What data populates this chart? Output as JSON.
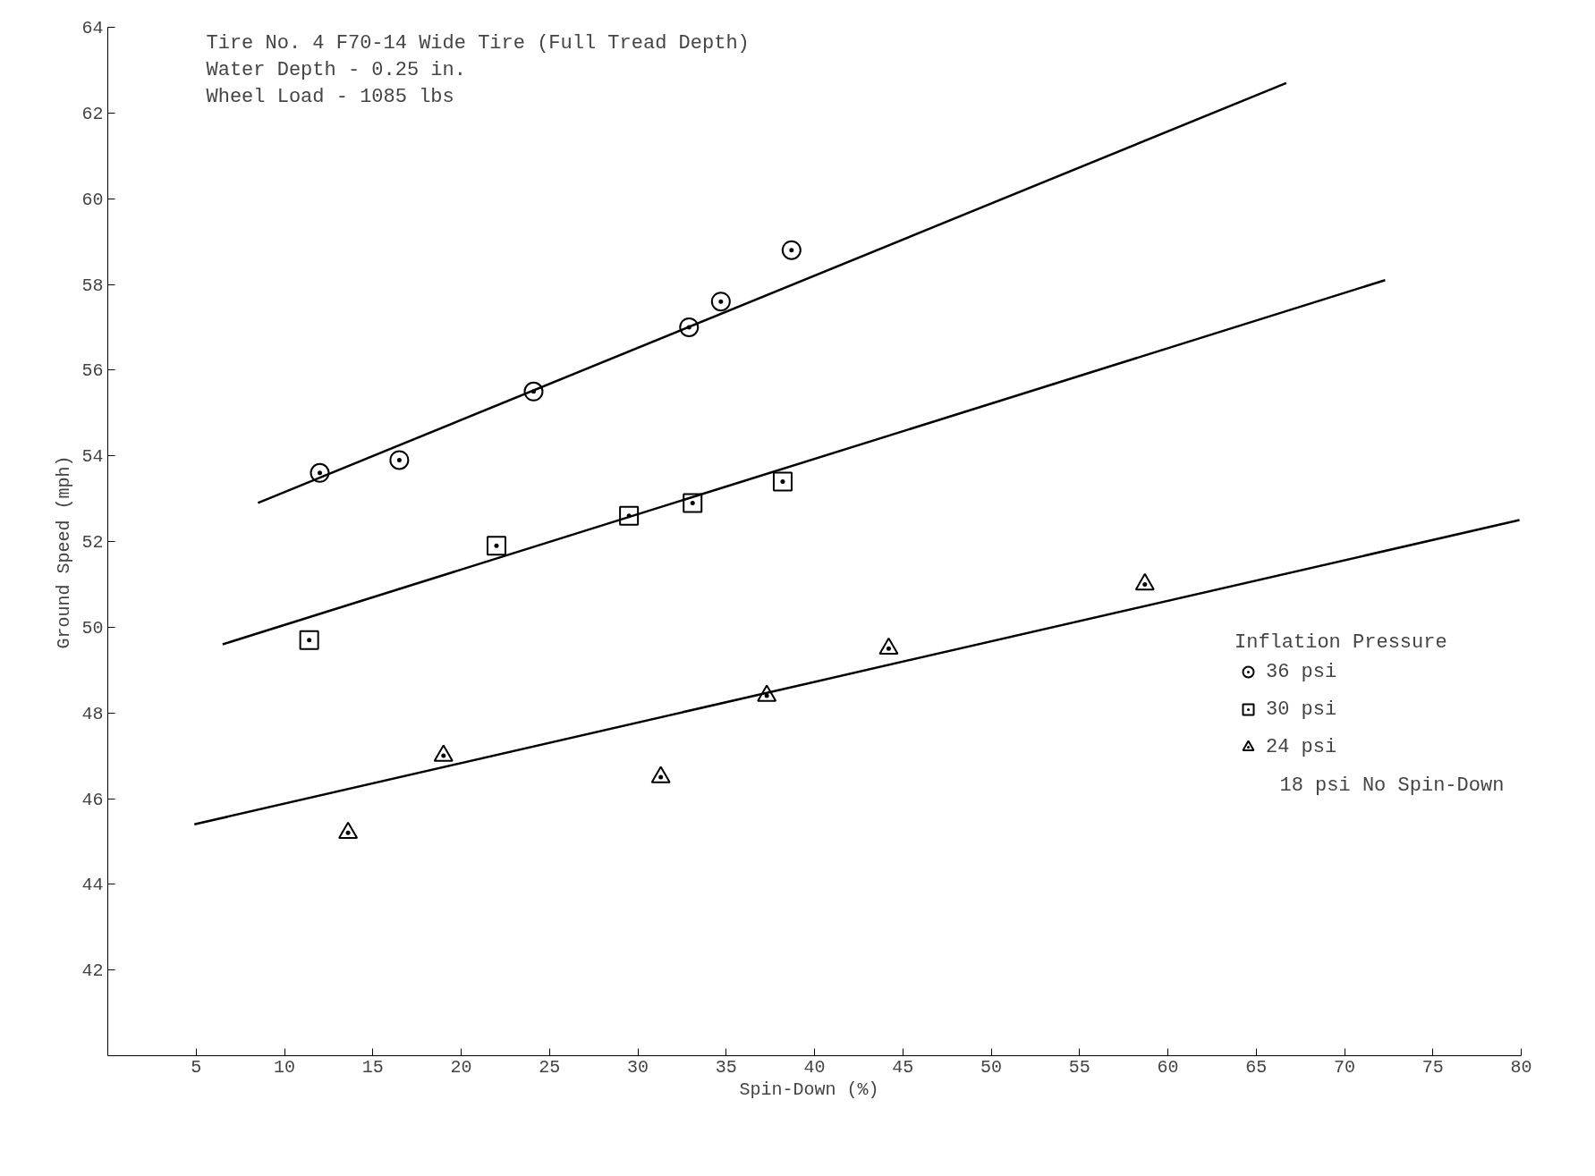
{
  "chart_data": {
    "type": "scatter",
    "title": "Tire No. 4  F70-14 Wide Tire (Full Tread Depth)",
    "xlabel": "Spin-Down  (%)",
    "ylabel": "Ground  Speed  (mph)",
    "legend_title": "Inflation Pressure",
    "annotations": [
      "Water Depth - 0.25 in.",
      "Wheel Load - 1085 lbs",
      "18 psi No Spin-Down"
    ],
    "xlim": [
      0,
      80
    ],
    "ylim": [
      40,
      64
    ],
    "xticks": [
      5,
      10,
      15,
      20,
      25,
      30,
      35,
      40,
      45,
      50,
      55,
      60,
      65,
      70,
      75,
      80
    ],
    "yticks": [
      42,
      44,
      46,
      48,
      50,
      52,
      54,
      56,
      58,
      60,
      62,
      64
    ],
    "grid": false,
    "legend": "right",
    "series": [
      {
        "name": "36 psi",
        "color": "#000000",
        "marker": "circle",
        "x": [
          12.0,
          16.5,
          24.1,
          32.9,
          34.7,
          38.7
        ],
        "values": [
          53.6,
          53.9,
          55.5,
          57.0,
          57.6,
          58.8
        ]
      },
      {
        "name": "30 psi",
        "color": "#000000",
        "marker": "square",
        "x": [
          11.4,
          22.0,
          29.5,
          33.1,
          38.2
        ],
        "values": [
          49.7,
          51.9,
          52.6,
          52.9,
          53.4
        ]
      },
      {
        "name": "24 psi",
        "color": "#000000",
        "marker": "triangle",
        "x": [
          13.6,
          19.0,
          31.3,
          37.3,
          44.2,
          58.7
        ],
        "values": [
          45.2,
          47.0,
          46.5,
          48.4,
          49.5,
          51.0
        ]
      },
      {
        "type": "line",
        "color": "#000000",
        "line_style": "solid",
        "x": [
          8.5,
          66.7
        ],
        "values": [
          52.9,
          62.7
        ]
      },
      {
        "type": "line",
        "color": "#000000",
        "line_style": "solid",
        "x": [
          6.5,
          72.3
        ],
        "values": [
          49.6,
          58.1
        ]
      },
      {
        "type": "line",
        "color": "#000000",
        "line_style": "solid",
        "x": [
          4.9,
          79.9
        ],
        "values": [
          45.4,
          52.5
        ]
      }
    ]
  }
}
